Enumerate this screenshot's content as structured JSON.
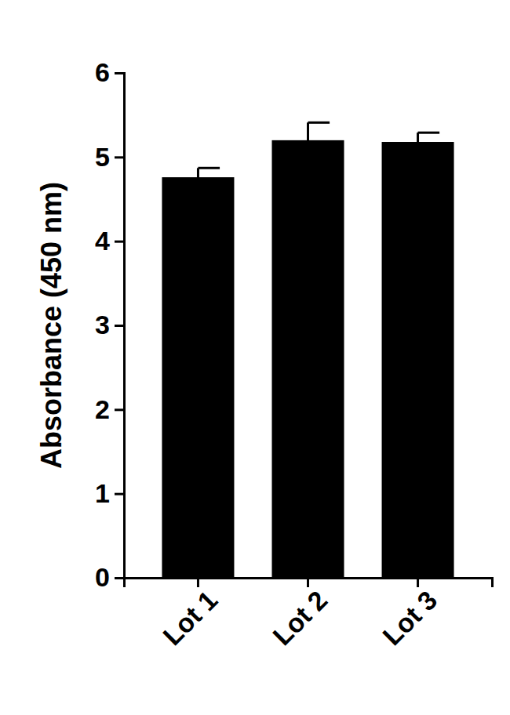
{
  "chart_data": {
    "type": "bar",
    "y_label": "Absorbance (450 nm)",
    "categories": [
      "Lot 1",
      "Lot 2",
      "Lot 3"
    ],
    "values": [
      4.76,
      5.2,
      5.18
    ],
    "errors": [
      0.11,
      0.21,
      0.11
    ],
    "color": "#000000",
    "ylim": [
      0,
      6
    ],
    "yticks": [
      0,
      1,
      2,
      3,
      4,
      5,
      6
    ],
    "grid": false
  }
}
